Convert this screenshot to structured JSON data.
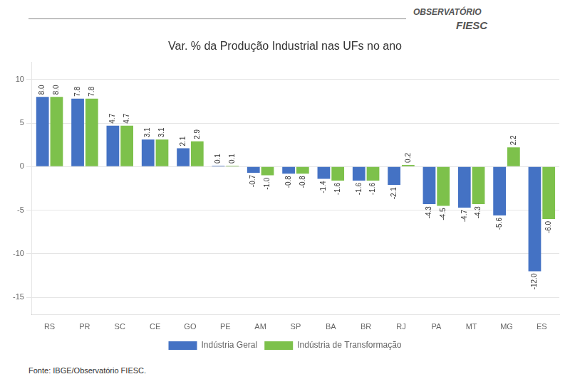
{
  "chart_data": {
    "type": "bar",
    "title": "Var. % da Produção Industrial nas UFs no ano",
    "categories": [
      "RS",
      "PR",
      "SC",
      "CE",
      "GO",
      "PE",
      "AM",
      "SP",
      "BA",
      "BR",
      "RJ",
      "PA",
      "MT",
      "MG",
      "ES"
    ],
    "series": [
      {
        "name": "Indústria Geral",
        "color": "#4472C4",
        "values": [
          8.0,
          7.8,
          4.7,
          3.1,
          2.1,
          0.1,
          -0.7,
          -0.8,
          -1.4,
          -1.6,
          -2.1,
          -4.3,
          -4.7,
          -5.6,
          -12.0
        ],
        "value_labels": [
          "8.0",
          "7.8",
          "4.7",
          "3.1",
          "2.1",
          "0.1",
          "-0.7",
          "-0.8",
          "-1.4",
          "-1.6",
          "-2.1",
          "-4.3",
          "-4.7",
          "-5.6",
          "-12.0"
        ]
      },
      {
        "name": "Indústria de Transformação",
        "color": "#7DC14B",
        "values": [
          8.0,
          7.8,
          4.7,
          3.1,
          2.9,
          0.1,
          -1.0,
          -0.8,
          -1.6,
          -1.6,
          0.2,
          -4.5,
          -4.3,
          2.2,
          -6.0
        ],
        "value_labels": [
          "8.0",
          "7.8",
          "4.7",
          "3.1",
          "2.9",
          "0.1",
          "-1.0",
          "-0.8",
          "-1.6",
          "-1.6",
          "0.2",
          "-4.5",
          "-4.3",
          "2.2",
          "-6.0"
        ]
      }
    ],
    "ylim": [
      -17,
      12
    ],
    "yticks": [
      -15,
      -10,
      -5,
      0,
      5,
      10
    ],
    "grid": true,
    "legend": "bottom",
    "data_labels": true,
    "annotations": [
      "Fonte: IBGE/Observatório FIESC.",
      "OBSERVATÓRIO",
      "FIESC"
    ]
  }
}
